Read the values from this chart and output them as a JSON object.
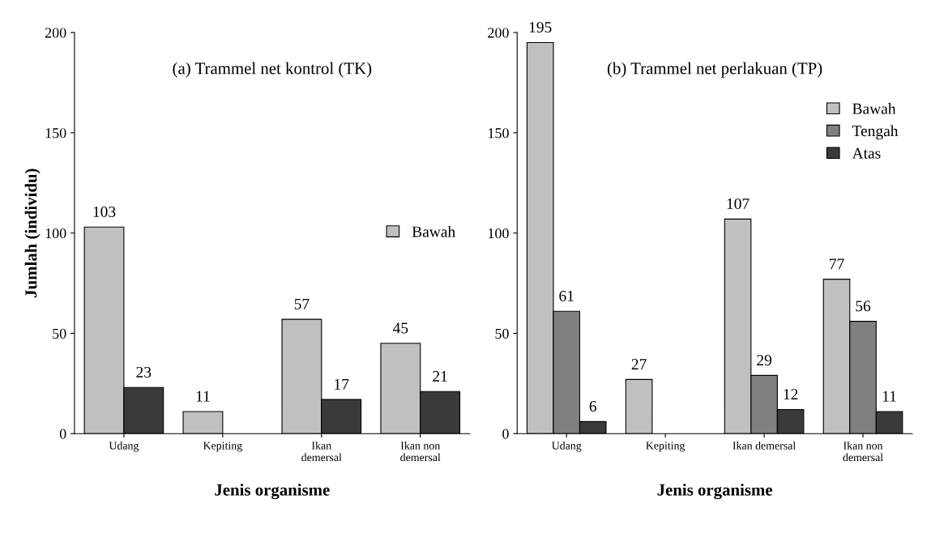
{
  "chart_data": [
    {
      "type": "bar",
      "title": "(a) Trammel net kontrol (TK)",
      "xlabel": "Jenis organisme",
      "ylabel": "Jumlah (individu)",
      "categories": [
        "Udang",
        "Kepiting",
        "Ikan\ndemersal",
        "Ikan non\ndemersal"
      ],
      "ylim": [
        0,
        200
      ],
      "yticks": [
        0,
        50,
        100,
        150,
        200
      ],
      "data_labels": true,
      "legend": "right",
      "grid": false,
      "series": [
        {
          "name": "Bawah",
          "color": "#c0c0c0",
          "values": [
            103,
            11,
            57,
            45
          ]
        },
        {
          "color": "#3a3a3a",
          "values": [
            23,
            null,
            17,
            21
          ]
        }
      ]
    },
    {
      "type": "bar",
      "title": "(b) Trammel net perlakuan (TP)",
      "xlabel": "Jenis organisme",
      "categories": [
        "Udang",
        "Kepiting",
        "Ikan demersal",
        "Ikan non\ndemersal"
      ],
      "ylim": [
        0,
        200
      ],
      "yticks": [
        0,
        50,
        100,
        150,
        200
      ],
      "data_labels": true,
      "legend": "upper right",
      "grid": false,
      "series": [
        {
          "name": "Bawah",
          "color": "#c0c0c0",
          "values": [
            195,
            27,
            107,
            77
          ]
        },
        {
          "name": "Tengah",
          "color": "#808080",
          "values": [
            61,
            null,
            29,
            56
          ]
        },
        {
          "name": "Atas",
          "color": "#3a3a3a",
          "values": [
            6,
            null,
            12,
            11
          ]
        }
      ]
    }
  ]
}
